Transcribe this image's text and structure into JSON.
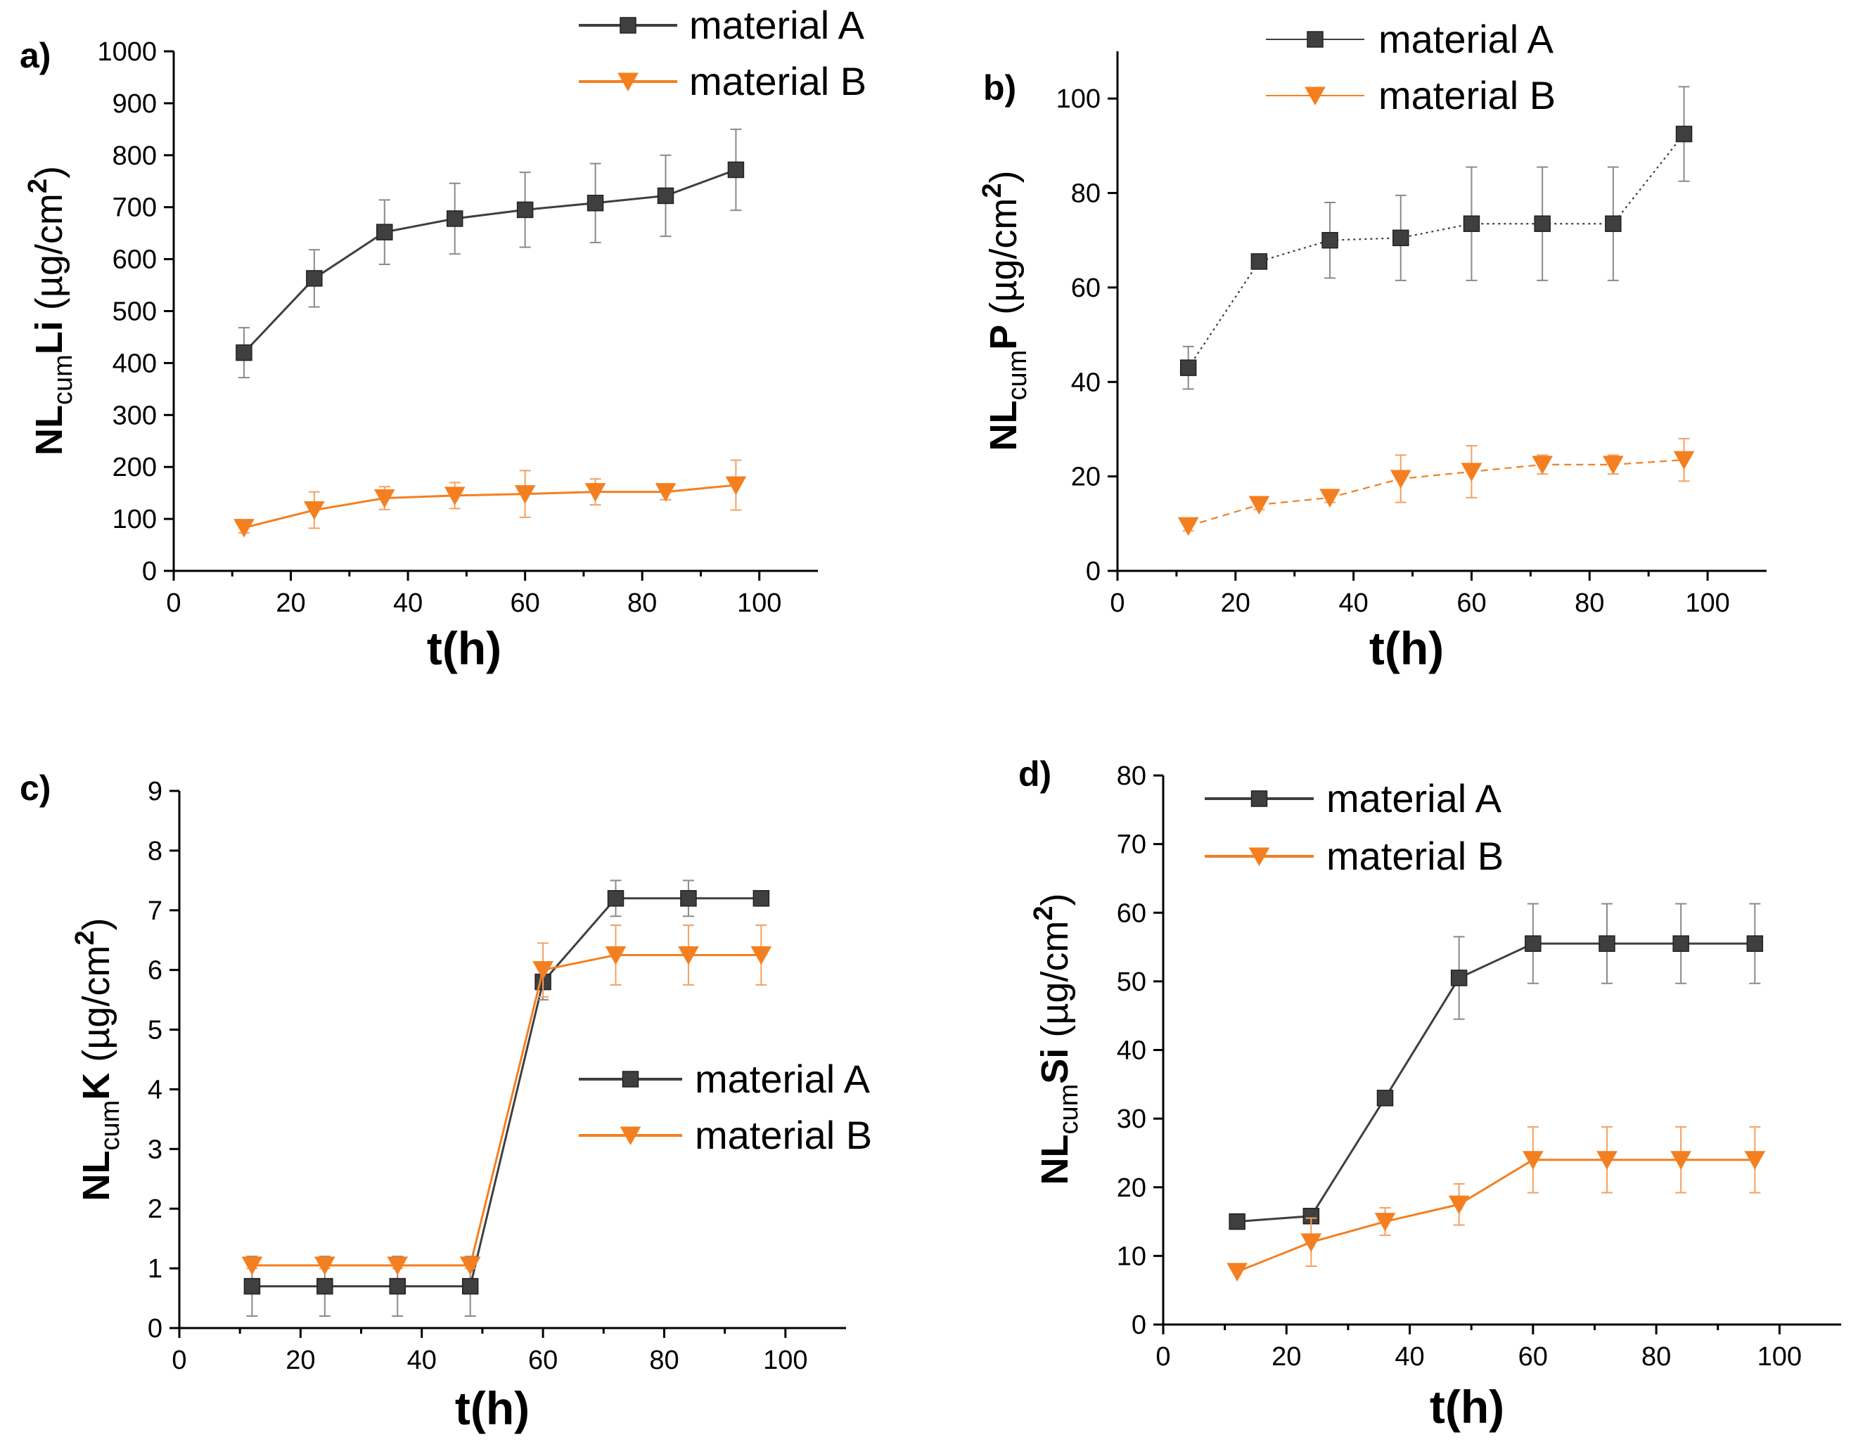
{
  "chart_data": [
    {
      "type": "line",
      "panel_label": "a)",
      "title": "",
      "xlabel": "t(h)",
      "ylabel": {
        "prefix": "NL",
        "sub": "cum",
        "species": "Li",
        "unit": "(µg/cm",
        "sup": "2",
        "close": ")"
      },
      "xlim": [
        0,
        110
      ],
      "ylim": [
        0,
        1000
      ],
      "xticks": [
        "0",
        "20",
        "40",
        "60",
        "80",
        "100"
      ],
      "yticks": [
        "0",
        "100",
        "200",
        "300",
        "400",
        "500",
        "600",
        "700",
        "800",
        "900",
        "1000"
      ],
      "legend": "top",
      "x": [
        12,
        24,
        36,
        48,
        60,
        72,
        84,
        96
      ],
      "series": [
        {
          "name": "material A",
          "marker": "square",
          "color": "#3f3f3f",
          "line": "solid",
          "values": [
            420,
            563,
            652,
            678,
            695,
            708,
            722,
            772
          ],
          "errors": [
            48,
            55,
            62,
            68,
            72,
            76,
            78,
            78
          ]
        },
        {
          "name": "material B",
          "marker": "triangle-down",
          "color": "#f47f20",
          "line": "solid",
          "values": [
            83,
            117,
            140,
            145,
            148,
            152,
            152,
            165
          ],
          "errors": [
            10,
            35,
            22,
            25,
            45,
            25,
            15,
            48
          ]
        }
      ]
    },
    {
      "type": "line",
      "panel_label": "b)",
      "title": "",
      "xlabel": "t(h)",
      "ylabel": {
        "prefix": "NL",
        "sub": "cum",
        "species": "P",
        "unit": "(µg/cm",
        "sup": "2",
        "close": ")"
      },
      "xlim": [
        0,
        110
      ],
      "ylim": [
        0,
        110
      ],
      "xticks": [
        "0",
        "20",
        "40",
        "60",
        "80",
        "100"
      ],
      "yticks": [
        "0",
        "20",
        "40",
        "60",
        "80",
        "100"
      ],
      "legend": "top",
      "x": [
        12,
        24,
        36,
        48,
        60,
        72,
        84,
        96
      ],
      "series": [
        {
          "name": "material A",
          "marker": "square",
          "color": "#3f3f3f",
          "line": "dotted",
          "values": [
            43,
            65.5,
            70,
            70.5,
            73.5,
            73.5,
            73.5,
            92.5
          ],
          "errors": [
            4.5,
            1,
            8,
            9,
            12,
            12,
            12,
            10
          ]
        },
        {
          "name": "material B",
          "marker": "triangle-down",
          "color": "#f47f20",
          "line": "dashed",
          "values": [
            9.5,
            14,
            15.5,
            19.5,
            21,
            22.5,
            22.5,
            23.5
          ],
          "errors": [
            1,
            1,
            1,
            5,
            5.5,
            2,
            2,
            4.5
          ]
        }
      ]
    },
    {
      "type": "line",
      "panel_label": "c)",
      "title": "",
      "xlabel": "t(h)",
      "ylabel": {
        "prefix": "NL",
        "sub": "cum",
        "species": "K",
        "unit": "(µg/cm",
        "sup": "2",
        "close": ")"
      },
      "xlim": [
        0,
        110
      ],
      "ylim": [
        0,
        9
      ],
      "xticks": [
        "0",
        "20",
        "40",
        "60",
        "80",
        "100"
      ],
      "yticks": [
        "0",
        "1",
        "2",
        "3",
        "4",
        "5",
        "6",
        "7",
        "8",
        "9"
      ],
      "legend": "center-right",
      "x": [
        12,
        24,
        36,
        48,
        60,
        72,
        84,
        96
      ],
      "series": [
        {
          "name": "material A",
          "marker": "square",
          "color": "#3f3f3f",
          "line": "solid",
          "values": [
            0.7,
            0.7,
            0.7,
            0.7,
            5.8,
            7.2,
            7.2,
            7.2
          ],
          "errors": [
            0.5,
            0.5,
            0.5,
            0.5,
            0.3,
            0.3,
            0.3,
            0
          ]
        },
        {
          "name": "material B",
          "marker": "triangle-down",
          "color": "#f47f20",
          "line": "solid",
          "values": [
            1.05,
            1.05,
            1.05,
            1.05,
            6.0,
            6.25,
            6.25,
            6.25
          ],
          "errors": [
            0.05,
            0.05,
            0.05,
            0.05,
            0.45,
            0.5,
            0.5,
            0.5
          ]
        }
      ]
    },
    {
      "type": "line",
      "panel_label": "d)",
      "title": "",
      "xlabel": "t(h)",
      "ylabel": {
        "prefix": "NL",
        "sub": "cum",
        "species": "Si",
        "unit": "(µg/cm",
        "sup": "2",
        "close": ")"
      },
      "xlim": [
        0,
        110
      ],
      "ylim": [
        0,
        80
      ],
      "xticks": [
        "0",
        "20",
        "40",
        "60",
        "80",
        "100"
      ],
      "yticks": [
        "0",
        "10",
        "20",
        "30",
        "40",
        "50",
        "60",
        "70",
        "80"
      ],
      "legend": "top-left",
      "x": [
        12,
        24,
        36,
        48,
        60,
        72,
        84,
        96
      ],
      "series": [
        {
          "name": "material A",
          "marker": "square",
          "color": "#3f3f3f",
          "line": "solid",
          "values": [
            15,
            15.8,
            33,
            50.5,
            55.5,
            55.5,
            55.5,
            55.5
          ],
          "errors": [
            0,
            0,
            0,
            6,
            5.8,
            5.8,
            5.8,
            5.8
          ]
        },
        {
          "name": "material B",
          "marker": "triangle-down",
          "color": "#f47f20",
          "line": "solid",
          "values": [
            7.7,
            12,
            15,
            17.5,
            24,
            24,
            24,
            24
          ],
          "errors": [
            0,
            3.5,
            2,
            3,
            4.8,
            4.8,
            4.8,
            4.8
          ]
        }
      ]
    }
  ]
}
